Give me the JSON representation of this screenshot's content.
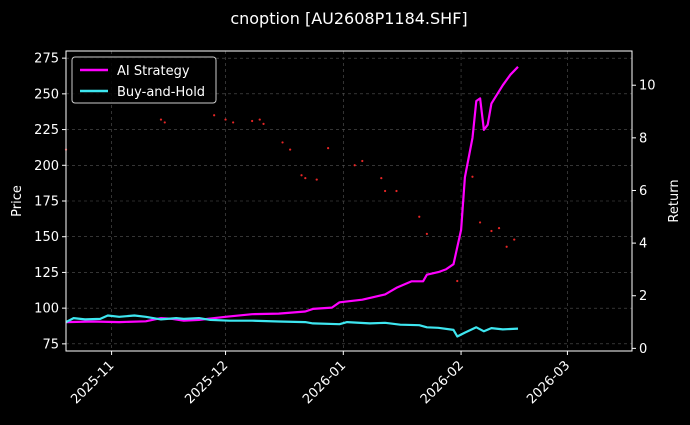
{
  "chart_data": {
    "type": "line",
    "title": "cnoption [AU2608P1184.SHF]",
    "xlabel": "",
    "ylabel_left": "Price",
    "ylabel_right": "Return",
    "x_ticks": [
      "2025-11",
      "2025-12",
      "2026-01",
      "2026-02",
      "2026-03"
    ],
    "xlim": [
      "2025-10-20",
      "2026-03-18"
    ],
    "ylim_left": [
      70,
      280
    ],
    "y_ticks_left": [
      75,
      100,
      125,
      150,
      175,
      200,
      225,
      250,
      275
    ],
    "ylim_right": [
      -0.1,
      11.3
    ],
    "y_ticks_right": [
      0,
      2,
      4,
      6,
      8,
      10
    ],
    "grid": true,
    "legend_position": "upper-left",
    "series": [
      {
        "name": "AI Strategy",
        "axis": "right",
        "color": "#ff00ff",
        "points": [
          [
            "2025-10-20",
            1.0
          ],
          [
            "2025-10-27",
            1.02
          ],
          [
            "2025-11-03",
            1.0
          ],
          [
            "2025-11-10",
            1.03
          ],
          [
            "2025-11-14",
            1.15
          ],
          [
            "2025-11-17",
            1.12
          ],
          [
            "2025-11-20",
            1.05
          ],
          [
            "2025-11-24",
            1.08
          ],
          [
            "2025-12-01",
            1.2
          ],
          [
            "2025-12-08",
            1.3
          ],
          [
            "2025-12-15",
            1.32
          ],
          [
            "2025-12-22",
            1.4
          ],
          [
            "2025-12-24",
            1.5
          ],
          [
            "2025-12-29",
            1.55
          ],
          [
            "2025-12-31",
            1.75
          ],
          [
            "2026-01-06",
            1.85
          ],
          [
            "2026-01-09",
            1.95
          ],
          [
            "2026-01-12",
            2.05
          ],
          [
            "2026-01-15",
            2.3
          ],
          [
            "2026-01-19",
            2.55
          ],
          [
            "2026-01-22",
            2.55
          ],
          [
            "2026-01-23",
            2.8
          ],
          [
            "2026-01-26",
            2.9
          ],
          [
            "2026-01-28",
            3.0
          ],
          [
            "2026-01-30",
            3.2
          ],
          [
            "2026-02-01",
            4.5
          ],
          [
            "2026-02-02",
            6.5
          ],
          [
            "2026-02-04",
            8.0
          ],
          [
            "2026-02-05",
            9.4
          ],
          [
            "2026-02-06",
            9.5
          ],
          [
            "2026-02-07",
            8.3
          ],
          [
            "2026-02-08",
            8.5
          ],
          [
            "2026-02-09",
            9.3
          ],
          [
            "2026-02-12",
            10.0
          ],
          [
            "2026-02-14",
            10.4
          ],
          [
            "2026-02-16",
            10.7
          ]
        ]
      },
      {
        "name": "Buy-and-Hold",
        "axis": "right",
        "color": "#3ee6f0",
        "points": [
          [
            "2025-10-20",
            1.0
          ],
          [
            "2025-10-22",
            1.15
          ],
          [
            "2025-10-25",
            1.1
          ],
          [
            "2025-10-29",
            1.12
          ],
          [
            "2025-10-31",
            1.25
          ],
          [
            "2025-11-03",
            1.2
          ],
          [
            "2025-11-07",
            1.25
          ],
          [
            "2025-11-10",
            1.2
          ],
          [
            "2025-11-14",
            1.1
          ],
          [
            "2025-11-18",
            1.15
          ],
          [
            "2025-11-20",
            1.12
          ],
          [
            "2025-11-24",
            1.15
          ],
          [
            "2025-11-27",
            1.08
          ],
          [
            "2025-12-02",
            1.05
          ],
          [
            "2025-12-08",
            1.05
          ],
          [
            "2025-12-15",
            1.02
          ],
          [
            "2025-12-22",
            1.0
          ],
          [
            "2025-12-24",
            0.95
          ],
          [
            "2025-12-31",
            0.92
          ],
          [
            "2026-01-02",
            1.0
          ],
          [
            "2026-01-08",
            0.95
          ],
          [
            "2026-01-12",
            0.97
          ],
          [
            "2026-01-16",
            0.9
          ],
          [
            "2026-01-21",
            0.88
          ],
          [
            "2026-01-23",
            0.8
          ],
          [
            "2026-01-26",
            0.78
          ],
          [
            "2026-01-30",
            0.7
          ],
          [
            "2026-01-31",
            0.45
          ],
          [
            "2026-02-02",
            0.6
          ],
          [
            "2026-02-05",
            0.8
          ],
          [
            "2026-02-07",
            0.65
          ],
          [
            "2026-02-09",
            0.77
          ],
          [
            "2026-02-12",
            0.72
          ],
          [
            "2026-02-16",
            0.75
          ]
        ]
      }
    ],
    "scatter": {
      "name": "Price",
      "axis": "left",
      "color": "#ff2a2a",
      "points": [
        [
          "2025-10-20",
          211
        ],
        [
          "2025-11-14",
          232
        ],
        [
          "2025-11-15",
          230
        ],
        [
          "2025-11-28",
          235
        ],
        [
          "2025-12-01",
          232
        ],
        [
          "2025-12-03",
          230
        ],
        [
          "2025-12-08",
          231
        ],
        [
          "2025-12-10",
          232
        ],
        [
          "2025-12-11",
          229
        ],
        [
          "2025-12-16",
          216
        ],
        [
          "2025-12-18",
          211
        ],
        [
          "2025-12-21",
          193
        ],
        [
          "2025-12-22",
          191
        ],
        [
          "2025-12-25",
          190
        ],
        [
          "2025-12-28",
          212
        ],
        [
          "2026-01-04",
          200
        ],
        [
          "2026-01-06",
          203
        ],
        [
          "2026-01-11",
          191
        ],
        [
          "2026-01-12",
          182
        ],
        [
          "2026-01-15",
          182
        ],
        [
          "2026-01-21",
          164
        ],
        [
          "2026-01-23",
          152
        ],
        [
          "2026-01-31",
          119
        ],
        [
          "2026-02-04",
          192
        ],
        [
          "2026-02-06",
          160
        ],
        [
          "2026-02-09",
          154
        ],
        [
          "2026-02-11",
          156
        ],
        [
          "2026-02-13",
          143
        ],
        [
          "2026-02-15",
          148
        ]
      ]
    }
  }
}
